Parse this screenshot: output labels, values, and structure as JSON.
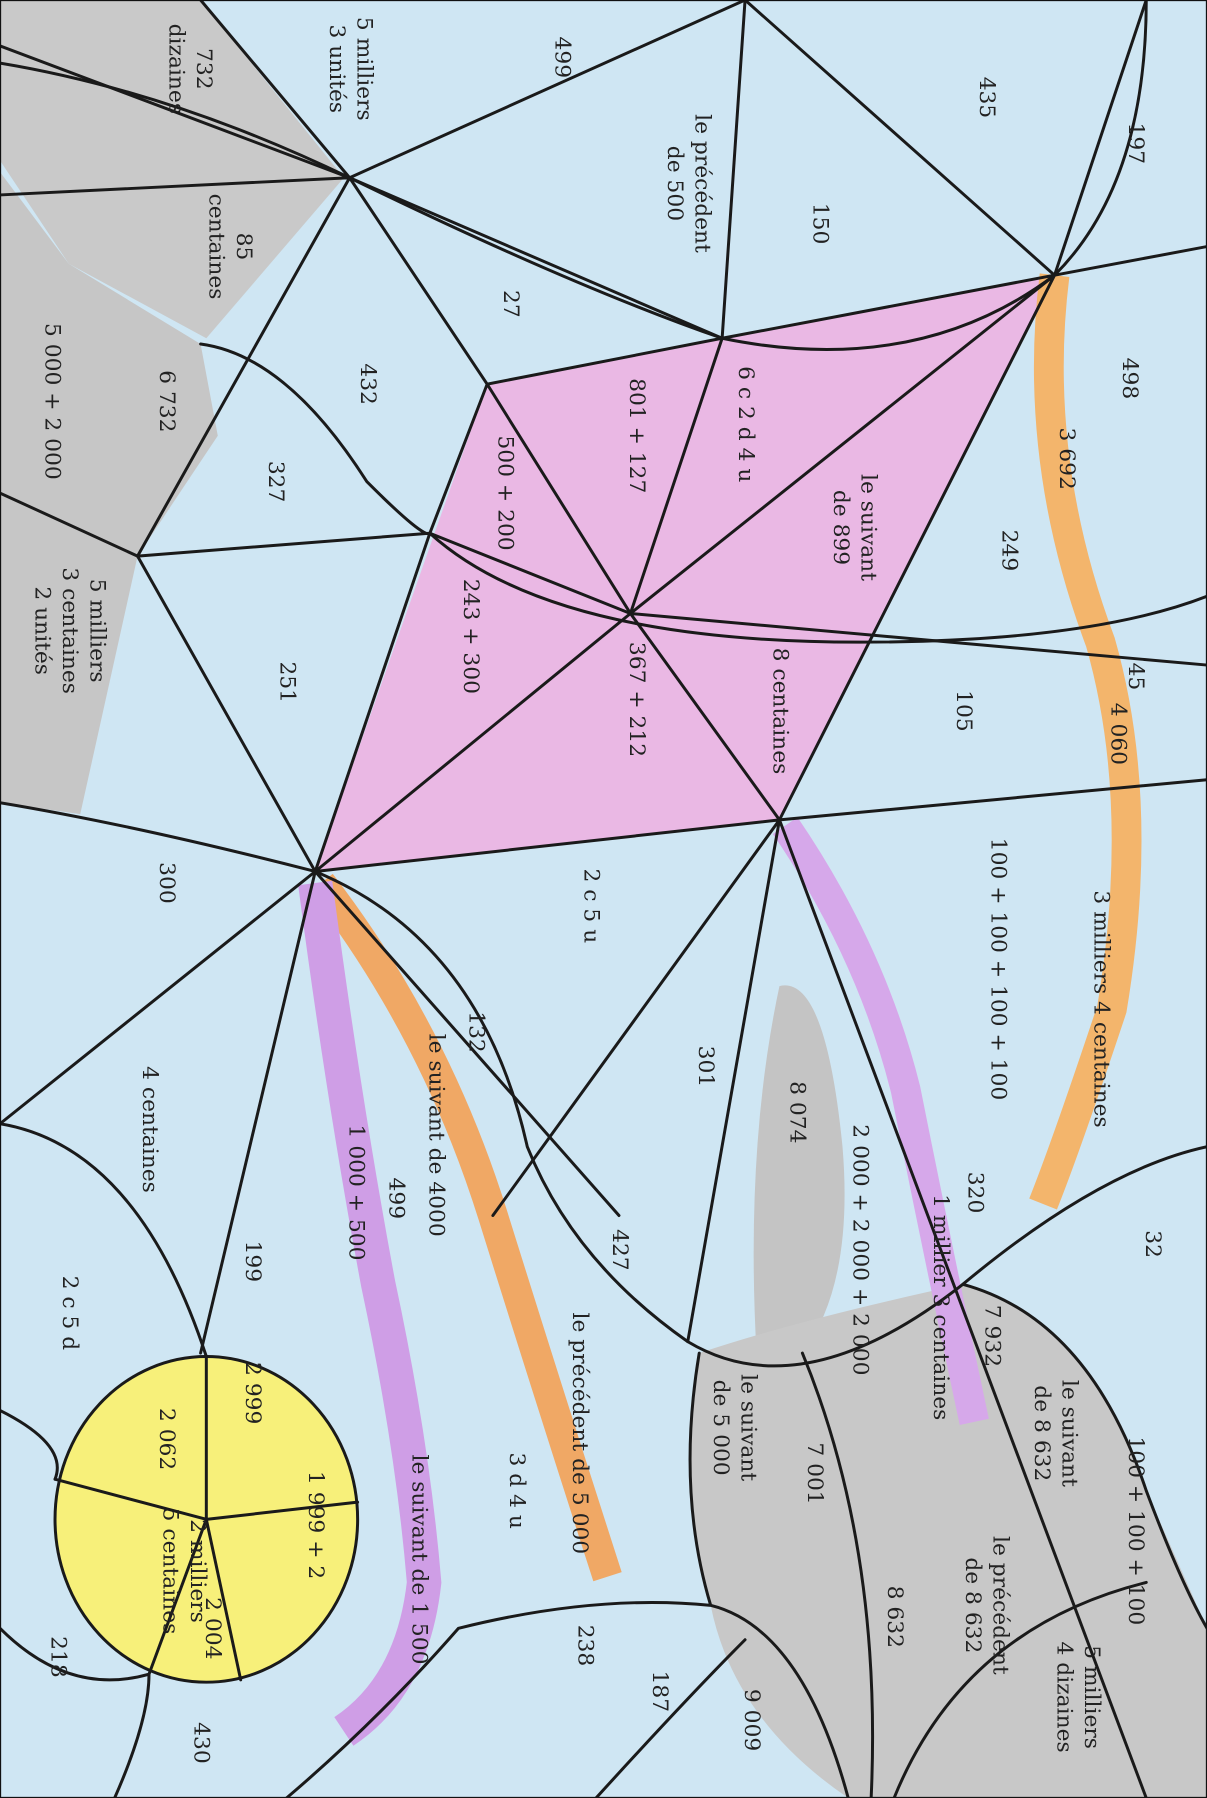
{
  "labels": [
    {
      "lines": [
        "732",
        "dizaines"
      ]
    },
    {
      "lines": [
        "5 milliers",
        "3 unités"
      ]
    },
    {
      "lines": [
        "499"
      ]
    },
    {
      "lines": [
        "435"
      ]
    },
    {
      "lines": [
        "197"
      ]
    },
    {
      "lines": [
        "le précédent",
        "de 500"
      ]
    },
    {
      "lines": [
        "150"
      ]
    },
    {
      "lines": [
        "85",
        "centaines"
      ]
    },
    {
      "lines": [
        "27"
      ]
    },
    {
      "lines": [
        "498"
      ]
    },
    {
      "lines": [
        "432"
      ]
    },
    {
      "lines": [
        "6 732"
      ]
    },
    {
      "lines": [
        "5 000 + 2 000"
      ]
    },
    {
      "lines": [
        "801 + 127"
      ]
    },
    {
      "lines": [
        "6 c 2 d 4 u"
      ]
    },
    {
      "lines": [
        "3 692"
      ]
    },
    {
      "lines": [
        "327"
      ]
    },
    {
      "lines": [
        "500 + 200"
      ]
    },
    {
      "lines": [
        "le suivant",
        "de 899"
      ]
    },
    {
      "lines": [
        "249"
      ]
    },
    {
      "lines": [
        "243 + 300"
      ]
    },
    {
      "lines": [
        "5 milliers",
        "3 centaines",
        "2 unités"
      ]
    },
    {
      "lines": [
        "251"
      ]
    },
    {
      "lines": [
        "367 + 212"
      ]
    },
    {
      "lines": [
        "8 centaines"
      ]
    },
    {
      "lines": [
        "105"
      ]
    },
    {
      "lines": [
        "45"
      ]
    },
    {
      "lines": [
        "4 060"
      ]
    },
    {
      "lines": [
        "100 + 100 + 100 + 100"
      ]
    },
    {
      "lines": [
        "3 milliers 4 centaines"
      ]
    },
    {
      "lines": [
        "300"
      ]
    },
    {
      "lines": [
        "2 c 5 u"
      ]
    },
    {
      "lines": [
        "132"
      ]
    },
    {
      "lines": [
        "301"
      ]
    },
    {
      "lines": [
        "8 074"
      ]
    },
    {
      "lines": [
        "4 centaines"
      ]
    },
    {
      "lines": [
        "2 000 + 2 000 + 2 000"
      ]
    },
    {
      "lines": [
        "le suivant de 4000"
      ]
    },
    {
      "lines": [
        "1 000 + 500"
      ]
    },
    {
      "lines": [
        "499"
      ]
    },
    {
      "lines": [
        "320"
      ]
    },
    {
      "lines": [
        "1 millier 3 centaines"
      ]
    },
    {
      "lines": [
        "32"
      ]
    },
    {
      "lines": [
        "427"
      ]
    },
    {
      "lines": [
        "199"
      ]
    },
    {
      "lines": [
        "le précédent de 5 000"
      ]
    },
    {
      "lines": [
        "2 c 5 d"
      ]
    },
    {
      "lines": [
        "7 932"
      ]
    },
    {
      "lines": [
        "le suivant",
        "de 8 632"
      ]
    },
    {
      "lines": [
        "le suivant",
        "de 5 000"
      ]
    },
    {
      "lines": [
        "2 999"
      ]
    },
    {
      "lines": [
        "2 062"
      ]
    },
    {
      "lines": [
        "7 001"
      ]
    },
    {
      "lines": [
        "1 999 + 2"
      ]
    },
    {
      "lines": [
        "100 + 100 + 100"
      ]
    },
    {
      "lines": [
        "3 d 4 u"
      ]
    },
    {
      "lines": [
        "le suivant de 1 500"
      ]
    },
    {
      "lines": [
        "2 milliers",
        "5 centaines"
      ]
    },
    {
      "lines": [
        "le précédent",
        "de 8 632"
      ]
    },
    {
      "lines": [
        "8 632"
      ]
    },
    {
      "lines": [
        "238"
      ]
    },
    {
      "lines": [
        "187"
      ]
    },
    {
      "lines": [
        "2 004"
      ]
    },
    {
      "lines": [
        "5 milliers",
        "4 dizaines"
      ]
    },
    {
      "lines": [
        "9 009"
      ]
    },
    {
      "lines": [
        "218"
      ]
    },
    {
      "lines": [
        "430"
      ]
    }
  ]
}
